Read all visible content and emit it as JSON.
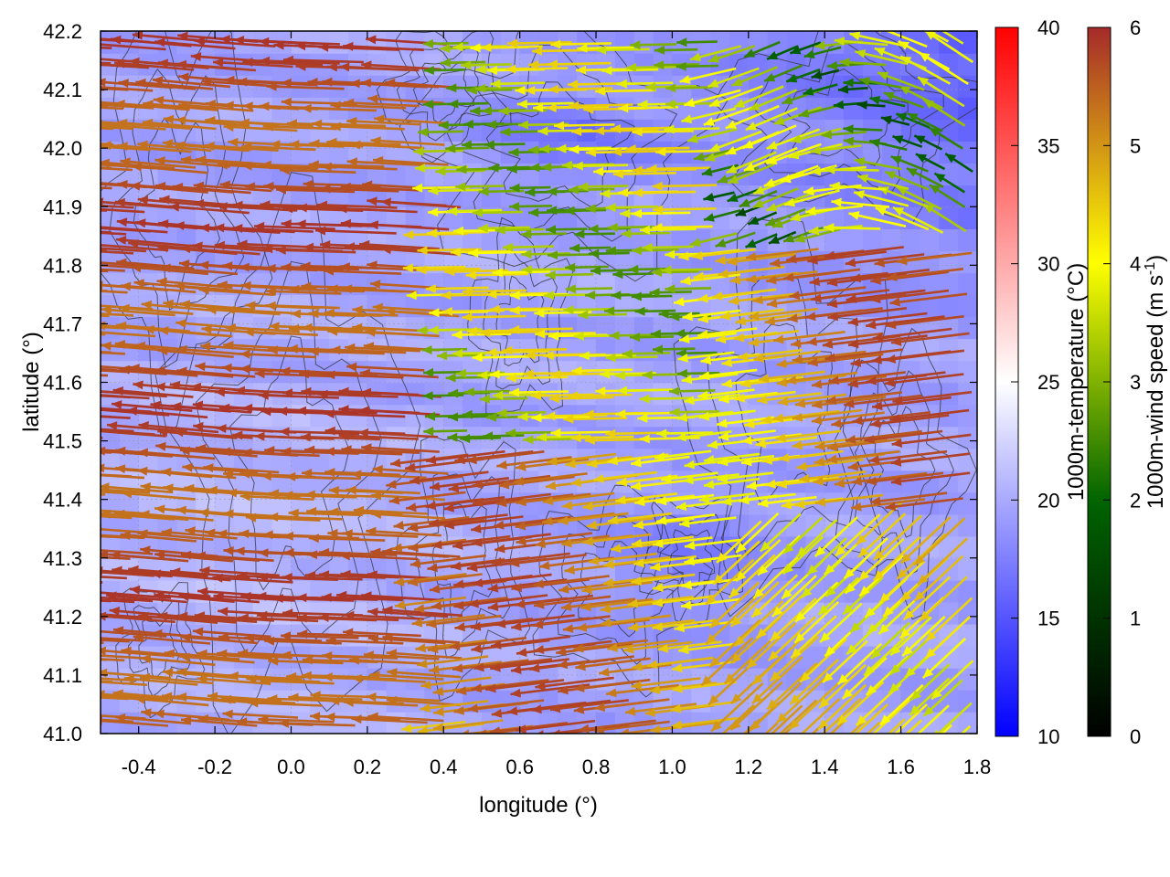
{
  "chart_data": {
    "type": "heatmap",
    "title": "",
    "xlabel": "longitude (°)",
    "ylabel": "latitude (°)",
    "xlim": [
      -0.5,
      1.8
    ],
    "ylim": [
      41.0,
      42.2
    ],
    "xticks": [
      "-0.4",
      "-0.2",
      "0.0",
      "0.2",
      "0.4",
      "0.6",
      "0.8",
      "1.0",
      "1.2",
      "1.4",
      "1.6",
      "1.8"
    ],
    "yticks": [
      "41.0",
      "41.1",
      "41.2",
      "41.3",
      "41.4",
      "41.5",
      "41.6",
      "41.7",
      "41.8",
      "41.9",
      "42.0",
      "42.1",
      "42.2"
    ],
    "grid": true,
    "contours": true,
    "field": {
      "name": "1000m-temperature",
      "unit": "°C",
      "range": [
        10,
        40
      ],
      "colormap": [
        "#0000ff",
        "#ffffff",
        "#ff0000"
      ],
      "colorbar_label": "1000m-temperature (°C)",
      "colorbar_ticks": [
        "10",
        "15",
        "20",
        "25",
        "30",
        "35",
        "40"
      ]
    },
    "vectors": {
      "name": "1000m-wind speed",
      "unit": "m s⁻¹",
      "range": [
        0,
        6
      ],
      "colormap": [
        "#000000",
        "#006400",
        "#ffff00",
        "#a52a2a"
      ],
      "colorbar_label_main": "1000m-wind speed (m s",
      "colorbar_label_sup": "-1",
      "colorbar_label_end": ")",
      "colorbar_ticks": [
        "0",
        "1",
        "2",
        "3",
        "4",
        "5",
        "6"
      ]
    }
  }
}
